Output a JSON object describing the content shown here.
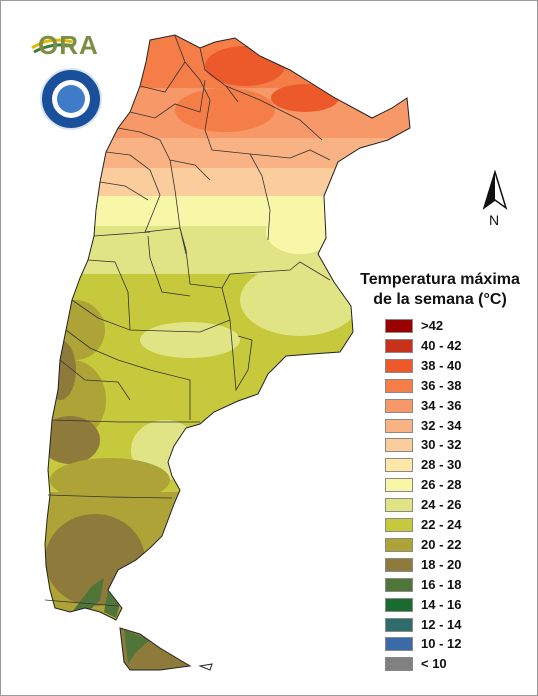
{
  "logo": {
    "text": "ORA"
  },
  "seal": {
    "name": "seal-icon"
  },
  "north_arrow": {
    "label": "N"
  },
  "legend": {
    "title_line1": "Temperatura máxima",
    "title_line2": "de la semana (°C)",
    "items": [
      {
        "label": ">42",
        "color": "#990000"
      },
      {
        "label": "40 - 42",
        "color": "#c8321a"
      },
      {
        "label": "38 - 40",
        "color": "#ec5a2c"
      },
      {
        "label": "36 - 38",
        "color": "#f57e48"
      },
      {
        "label": "34 - 36",
        "color": "#f79868"
      },
      {
        "label": "32 - 34",
        "color": "#f9b284"
      },
      {
        "label": "30 - 32",
        "color": "#fbcc9c"
      },
      {
        "label": "28 - 30",
        "color": "#fde8a8"
      },
      {
        "label": "26 - 28",
        "color": "#f8f7a8"
      },
      {
        "label": "24 - 26",
        "color": "#e1e484"
      },
      {
        "label": "22 - 24",
        "color": "#c6c93b"
      },
      {
        "label": "20 - 22",
        "color": "#aea337"
      },
      {
        "label": "18 - 20",
        "color": "#8e7a3a"
      },
      {
        "label": "16 - 18",
        "color": "#4f7539"
      },
      {
        "label": "14 - 16",
        "color": "#1a6b2f"
      },
      {
        "label": "12 - 14",
        "color": "#2f6c6c"
      },
      {
        "label": "10 - 12",
        "color": "#3a6ba8"
      },
      {
        "label": "< 10",
        "color": "#808080"
      }
    ]
  }
}
